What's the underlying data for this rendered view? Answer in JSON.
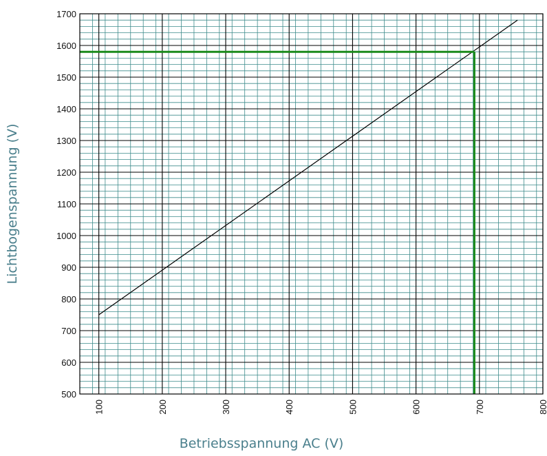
{
  "chart_data": {
    "type": "line",
    "xlabel": "Betriebsspannung AC (V)",
    "ylabel": "Lichtbogenspannung (V)",
    "xlim": [
      70,
      800
    ],
    "ylim": [
      500,
      1700
    ],
    "xticks": [
      100,
      200,
      300,
      400,
      500,
      600,
      700,
      800
    ],
    "yticks": [
      500,
      600,
      700,
      800,
      900,
      1000,
      1100,
      1200,
      1300,
      1400,
      1500,
      1600,
      1700
    ],
    "major_grid_x_step": 100,
    "major_grid_y_step": 100,
    "minor_grid_x_step": 20,
    "minor_grid_y_step": 20,
    "grid": true,
    "series": [
      {
        "x": [
          100,
          760
        ],
        "y": [
          750,
          1680
        ]
      }
    ],
    "reference_lines": {
      "x": 692,
      "y": 1580
    },
    "colors": {
      "line": "#000000",
      "reference": "#1a8a1a",
      "minor_grid": "#3d8b8b",
      "major_grid": "#000000",
      "axis_title": "#4a7f8c"
    }
  }
}
